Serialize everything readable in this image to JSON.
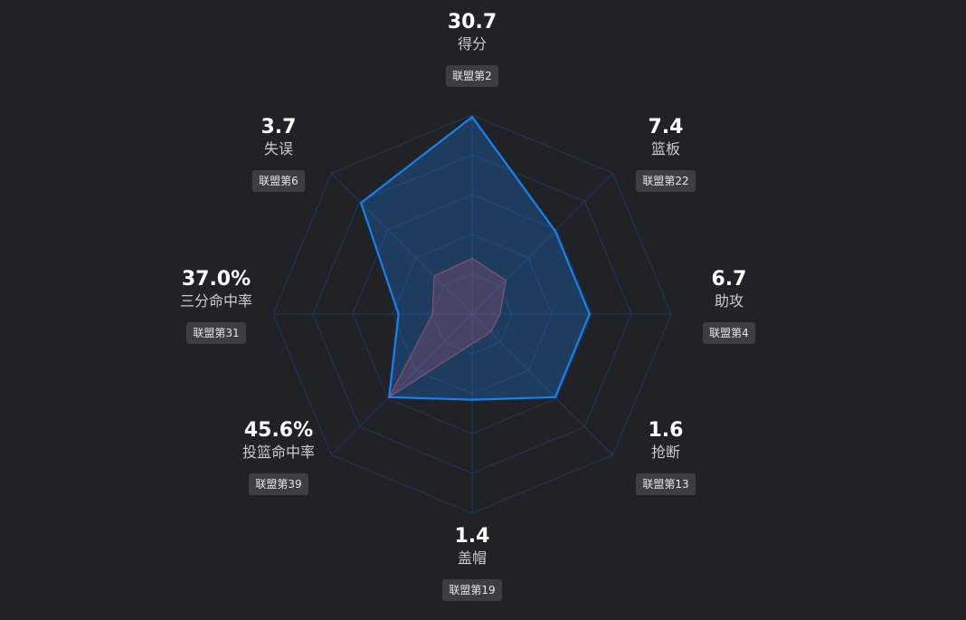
{
  "chart_data": {
    "type": "radar",
    "axes": [
      {
        "value": "30.7",
        "name": "得分",
        "rank": "联盟第2",
        "percentile": 0.99
      },
      {
        "value": "7.4",
        "name": "篮板",
        "rank": "联盟第22",
        "percentile": 0.59
      },
      {
        "value": "6.7",
        "name": "助攻",
        "rank": "联盟第4",
        "percentile": 0.59
      },
      {
        "value": "1.6",
        "name": "抢断",
        "rank": "联盟第13",
        "percentile": 0.59
      },
      {
        "value": "1.4",
        "name": "盖帽",
        "rank": "联盟第19",
        "percentile": 0.43
      },
      {
        "value": "45.6%",
        "name": "投篮命中率",
        "rank": "联盟第39",
        "percentile": 0.59
      },
      {
        "value": "37.0%",
        "name": "三分命中率",
        "rank": "联盟第31",
        "percentile": 0.37
      },
      {
        "value": "3.7",
        "name": "失误",
        "rank": "联盟第6",
        "percentile": 0.79
      }
    ],
    "reference_values": [
      0.28,
      0.24,
      0.14,
      0.13,
      0.15,
      0.59,
      0.2,
      0.27
    ],
    "grid_levels": 5,
    "series_color": "#1682f2",
    "reference_color": "#b35a78",
    "grid_color": "#1d3a5e"
  }
}
